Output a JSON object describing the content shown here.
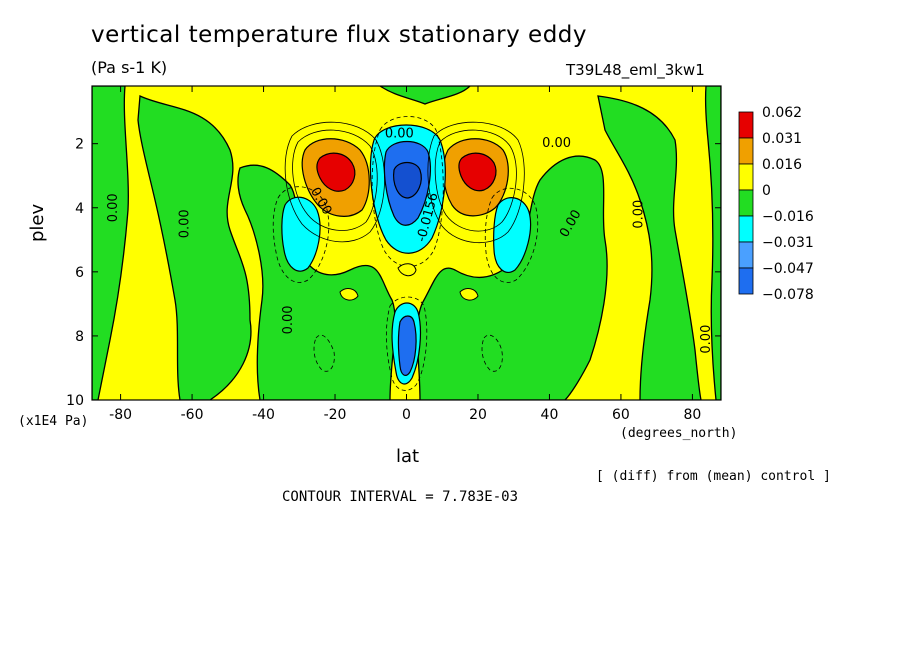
{
  "chart_data": {
    "type": "heatmap",
    "title": "vertical temperature flux stationary eddy",
    "units": "(Pa s-1 K)",
    "run_label": "T39L48_eml_3kw1",
    "xlabel": "lat",
    "x_unit_label": "(degrees_north)",
    "ylabel": "plev",
    "y_unit_label": "(x1E4 Pa)",
    "xlim": [
      -88,
      88
    ],
    "ylim": [
      10,
      0.2
    ],
    "x_ticks": [
      -80,
      -60,
      -40,
      -20,
      0,
      20,
      40,
      60,
      80
    ],
    "x_tick_labels": [
      "-80",
      "-60",
      "-40",
      "-20",
      "0",
      "20",
      "40",
      "60",
      "80"
    ],
    "y_ticks": [
      2,
      4,
      6,
      8,
      10
    ],
    "y_tick_labels": [
      "2",
      "4",
      "6",
      "8",
      "10"
    ],
    "note": "[ (diff) from (mean) control ]",
    "contour_interval_text": "CONTOUR INTERVAL = 7.783E-03",
    "legend_labels": [
      "0.062",
      "0.031",
      "0.016",
      "0",
      "−0.016",
      "−0.031",
      "−0.047",
      "−0.078"
    ],
    "legend_colors": [
      "#e60000",
      "#f0a000",
      "#ffff00",
      "#22dd22",
      "#00ffff",
      "#4aa0ff",
      "#1e6ef0"
    ],
    "contour_labels": [
      {
        "text": "0.00",
        "lat": -82,
        "plev": 4.0,
        "rot": -90
      },
      {
        "text": "0.00",
        "lat": -62,
        "plev": 4.5,
        "rot": -90
      },
      {
        "text": "0.00",
        "lat": -33,
        "plev": 7.5,
        "rot": -90
      },
      {
        "text": "0.00",
        "lat": -24,
        "plev": 3.8,
        "rot": 60
      },
      {
        "text": "0.00",
        "lat": -2,
        "plev": 1.7,
        "rot": 0
      },
      {
        "text": "-0.0156",
        "lat": 6,
        "plev": 4.3,
        "rot": -75
      },
      {
        "text": "0.00",
        "lat": 42,
        "plev": 2.0,
        "rot": 0
      },
      {
        "text": "0.00",
        "lat": 46,
        "plev": 4.5,
        "rot": -60
      },
      {
        "text": "0.00",
        "lat": 65,
        "plev": 4.2,
        "rot": -90
      },
      {
        "text": "0.00",
        "lat": 84,
        "plev": 8.1,
        "rot": -90
      }
    ],
    "features": [
      {
        "name": "positive-max-south",
        "lat": -20,
        "plev": 2.9,
        "value": 0.062
      },
      {
        "name": "positive-max-north",
        "lat": 21,
        "plev": 2.9,
        "value": 0.062
      },
      {
        "name": "negative-min-equator-upper",
        "lat": 0,
        "plev": 3.0,
        "value": -0.078
      },
      {
        "name": "negative-min-equator-lower",
        "lat": 0,
        "plev": 8.5,
        "value": -0.047
      },
      {
        "name": "negative-cell-south",
        "lat": -30,
        "plev": 4.3,
        "value": -0.031
      },
      {
        "name": "negative-cell-north",
        "lat": 30,
        "plev": 4.3,
        "value": -0.031
      }
    ],
    "grid": false
  }
}
